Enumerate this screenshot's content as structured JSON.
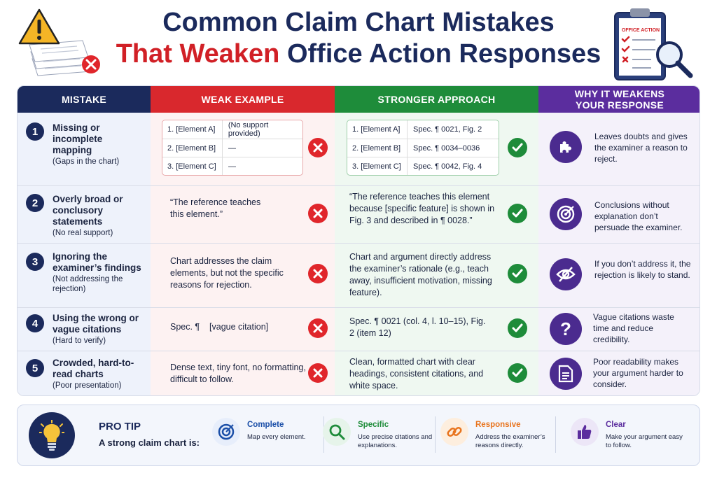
{
  "title": {
    "line1": "Common Claim Chart Mistakes",
    "line2_red": "That Weaken",
    "line2_rest": " Office Action Responses"
  },
  "clipboard": {
    "label": "OFFICE ACTION"
  },
  "headers": {
    "mistake": "MISTAKE",
    "weak": "WEAK EXAMPLE",
    "stronger": "STRONGER APPROACH",
    "why": "WHY IT WEAKENS YOUR RESPONSE"
  },
  "colors": {
    "navy": "#1b2a5c",
    "red": "#d9282d",
    "green": "#1e8c3a",
    "purple": "#5b2d9e"
  },
  "rows": [
    {
      "num": "1",
      "title": "Missing or incomplete mapping",
      "sub": "(Gaps in the chart)",
      "weak_table": [
        {
          "el": "1. [Element A]",
          "val": "(No support provided)"
        },
        {
          "el": "2. [Element B]",
          "val": "—"
        },
        {
          "el": "3. [Element C]",
          "val": "—"
        }
      ],
      "strong_table": [
        {
          "el": "1. [Element A]",
          "val": "Spec. ¶ 0021, Fig. 2"
        },
        {
          "el": "2. [Element B]",
          "val": "Spec. ¶ 0034–0036"
        },
        {
          "el": "3. [Element C]",
          "val": "Spec. ¶ 0042, Fig. 4"
        }
      ],
      "why": "Leaves doubts and gives the examiner a reason to reject.",
      "why_icon": "puzzle-icon"
    },
    {
      "num": "2",
      "title": "Overly broad or conclusory statements",
      "sub": "(No real support)",
      "weak": "“The reference teaches this element.”",
      "strong": "“The reference teaches this element because [specific feature] is shown in Fig. 3 and described in ¶ 0028.”",
      "why": "Conclusions without explanation don’t persuade the examiner.",
      "why_icon": "target-icon"
    },
    {
      "num": "3",
      "title": "Ignoring the examiner’s findings",
      "sub": "(Not addressing the rejection)",
      "weak": "Chart addresses the claim elements, but not the specific reasons for rejection.",
      "strong": "Chart and argument directly address the examiner’s rationale (e.g., teach away, insufficient motivation, missing feature).",
      "why": "If you don’t address it, the rejection is likely to stand.",
      "why_icon": "eye-off-icon"
    },
    {
      "num": "4",
      "title": "Using the wrong or vague citations",
      "sub": "(Hard to verify)",
      "weak": "Spec. ¶    [vague citation]",
      "strong": "Spec. ¶ 0021 (col. 4, l. 10–15), Fig. 2 (item 12)",
      "why": "Vague citations waste time and reduce credibility.",
      "why_icon": "question-icon"
    },
    {
      "num": "5",
      "title": "Crowded, hard-to-read charts",
      "sub": "(Poor presentation)",
      "weak": "Dense text, tiny font, no formatting, difficult to follow.",
      "strong": "Clean, formatted chart with clear headings, consistent citations, and white space.",
      "why": "Poor readability makes your argument harder to consider.",
      "why_icon": "document-icon"
    }
  ],
  "pro_tip": {
    "label": "PRO TIP",
    "lead": "A strong claim chart is:",
    "items": [
      {
        "name": "Complete",
        "desc": "Map every element.",
        "color": "#1b4fa8",
        "icon": "target-icon"
      },
      {
        "name": "Specific",
        "desc": "Use precise citations and explanations.",
        "color": "#1e8c3a",
        "icon": "search-icon"
      },
      {
        "name": "Responsive",
        "desc": "Address the examiner’s reasons directly.",
        "color": "#e8741e",
        "icon": "link-icon"
      },
      {
        "name": "Clear",
        "desc": "Make your argument easy to follow.",
        "color": "#5b2d9e",
        "icon": "thumbs-up-icon"
      }
    ]
  }
}
